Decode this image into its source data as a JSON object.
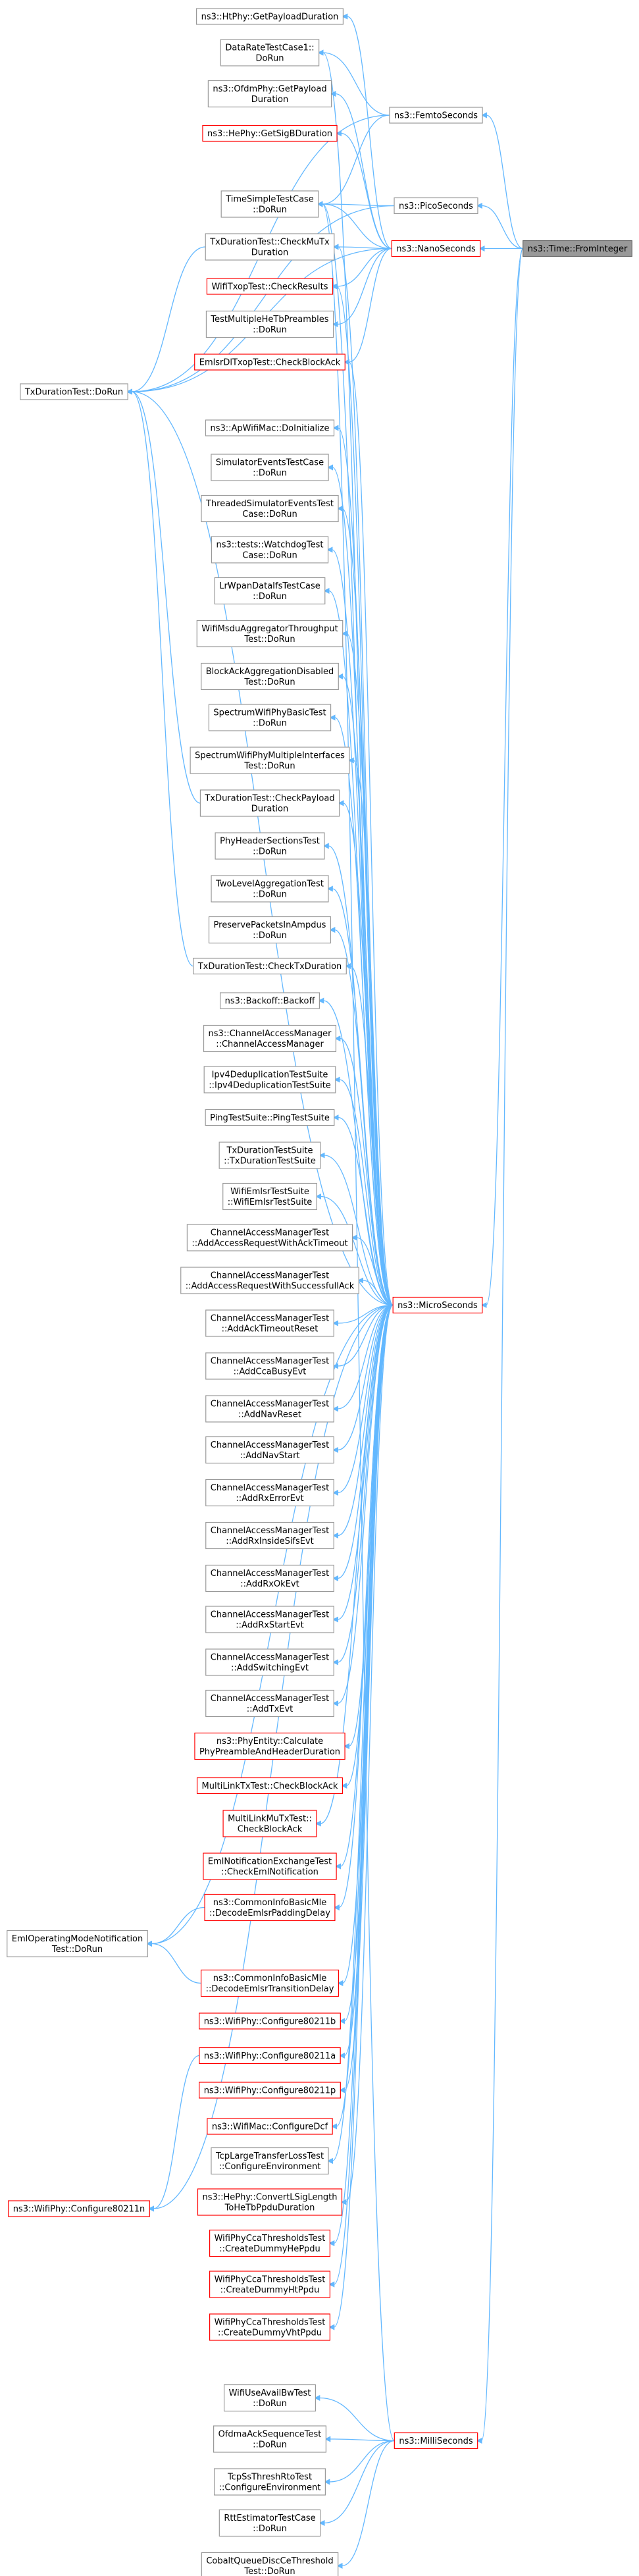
{
  "nodes": [
    {
      "lines": [
        "ns3::HtPhy::GetPayloadDuration"
      ]
    },
    {
      "lines": [
        "DataRateTestCase1::",
        "DoRun"
      ]
    },
    {
      "lines": [
        "ns3::OfdmPhy::GetPayload",
        "Duration"
      ]
    },
    {
      "lines": [
        "ns3::HePhy::GetSigBDuration"
      ]
    },
    {
      "lines": [
        "ns3::FemtoSeconds"
      ]
    },
    {
      "lines": [
        "TimeSimpleTestCase",
        "::DoRun"
      ]
    },
    {
      "lines": [
        "ns3::PicoSeconds"
      ]
    },
    {
      "lines": [
        "ns3::Time::FromInteger"
      ]
    },
    {
      "lines": [
        "TxDurationTest::CheckMuTx",
        "Duration"
      ]
    },
    {
      "lines": [
        "ns3::NanoSeconds"
      ]
    },
    {
      "lines": [
        "WifiTxopTest::CheckResults"
      ]
    },
    {
      "lines": [
        "TestMultipleHeTbPreambles",
        "::DoRun"
      ]
    },
    {
      "lines": [
        "EmlsrDlTxopTest::CheckBlockAck"
      ]
    },
    {
      "lines": [
        "TxDurationTest::DoRun"
      ]
    },
    {
      "lines": [
        "ns3::ApWifiMac::DoInitialize"
      ]
    },
    {
      "lines": [
        "SimulatorEventsTestCase",
        "::DoRun"
      ]
    },
    {
      "lines": [
        "ThreadedSimulatorEventsTest",
        "Case::DoRun"
      ]
    },
    {
      "lines": [
        "ns3::tests::WatchdogTest",
        "Case::DoRun"
      ]
    },
    {
      "lines": [
        "LrWpanDataIfsTestCase",
        "::DoRun"
      ]
    },
    {
      "lines": [
        "WifiMsduAggregatorThroughput",
        "Test::DoRun"
      ]
    },
    {
      "lines": [
        "BlockAckAggregationDisabled",
        "Test::DoRun"
      ]
    },
    {
      "lines": [
        "SpectrumWifiPhyBasicTest",
        "::DoRun"
      ]
    },
    {
      "lines": [
        "SpectrumWifiPhyMultipleInterfaces",
        "Test::DoRun"
      ]
    },
    {
      "lines": [
        "TxDurationTest::CheckPayload",
        "Duration"
      ]
    },
    {
      "lines": [
        "PhyHeaderSectionsTest",
        "::DoRun"
      ]
    },
    {
      "lines": [
        "TwoLevelAggregationTest",
        "::DoRun"
      ]
    },
    {
      "lines": [
        "PreservePacketsInAmpdus",
        "::DoRun"
      ]
    },
    {
      "lines": [
        "TxDurationTest::CheckTxDuration"
      ]
    },
    {
      "lines": [
        "ns3::Backoff::Backoff"
      ]
    },
    {
      "lines": [
        "ns3::ChannelAccessManager",
        "::ChannelAccessManager"
      ]
    },
    {
      "lines": [
        "Ipv4DeduplicationTestSuite",
        "::Ipv4DeduplicationTestSuite"
      ]
    },
    {
      "lines": [
        "PingTestSuite::PingTestSuite"
      ]
    },
    {
      "lines": [
        "TxDurationTestSuite",
        "::TxDurationTestSuite"
      ]
    },
    {
      "lines": [
        "WifiEmlsrTestSuite",
        "::WifiEmlsrTestSuite"
      ]
    },
    {
      "lines": [
        "ChannelAccessManagerTest",
        "::AddAccessRequestWithAckTimeout"
      ]
    },
    {
      "lines": [
        "ChannelAccessManagerTest",
        "::AddAccessRequestWithSuccessfullAck"
      ]
    },
    {
      "lines": [
        "ns3::MicroSeconds"
      ]
    },
    {
      "lines": [
        "ChannelAccessManagerTest",
        "::AddAckTimeoutReset"
      ]
    },
    {
      "lines": [
        "ChannelAccessManagerTest",
        "::AddCcaBusyEvt"
      ]
    },
    {
      "lines": [
        "ChannelAccessManagerTest",
        "::AddNavReset"
      ]
    },
    {
      "lines": [
        "ChannelAccessManagerTest",
        "::AddNavStart"
      ]
    },
    {
      "lines": [
        "ChannelAccessManagerTest",
        "::AddRxErrorEvt"
      ]
    },
    {
      "lines": [
        "ChannelAccessManagerTest",
        "::AddRxInsideSifsEvt"
      ]
    },
    {
      "lines": [
        "ChannelAccessManagerTest",
        "::AddRxOkEvt"
      ]
    },
    {
      "lines": [
        "ChannelAccessManagerTest",
        "::AddRxStartEvt"
      ]
    },
    {
      "lines": [
        "ChannelAccessManagerTest",
        "::AddSwitchingEvt"
      ]
    },
    {
      "lines": [
        "ChannelAccessManagerTest",
        "::AddTxEvt"
      ]
    },
    {
      "lines": [
        "ns3::PhyEntity::Calculate",
        "PhyPreambleAndHeaderDuration"
      ]
    },
    {
      "lines": [
        "MultiLinkTxTest::CheckBlockAck"
      ]
    },
    {
      "lines": [
        "MultiLinkMuTxTest::",
        "CheckBlockAck"
      ]
    },
    {
      "lines": [
        "EmlNotificationExchangeTest",
        "::CheckEmlNotification"
      ]
    },
    {
      "lines": [
        "ns3::CommonInfoBasicMle",
        "::DecodeEmlsrPaddingDelay"
      ]
    },
    {
      "lines": [
        "EmlOperatingModeNotification",
        "Test::DoRun"
      ]
    },
    {
      "lines": [
        "ns3::CommonInfoBasicMle",
        "::DecodeEmlsrTransitionDelay"
      ]
    },
    {
      "lines": [
        "ns3::WifiPhy::Configure80211b"
      ]
    },
    {
      "lines": [
        "ns3::WifiPhy::Configure80211a"
      ]
    },
    {
      "lines": [
        "ns3::WifiPhy::Configure80211p"
      ]
    },
    {
      "lines": [
        "ns3::WifiMac::ConfigureDcf"
      ]
    },
    {
      "lines": [
        "TcpLargeTransferLossTest",
        "::ConfigureEnvironment"
      ]
    },
    {
      "lines": [
        "ns3::HePhy::ConvertLSigLength",
        "ToHeTbPpduDuration"
      ]
    },
    {
      "lines": [
        "ns3::WifiPhy::Configure80211n"
      ]
    },
    {
      "lines": [
        "WifiPhyCcaThresholdsTest",
        "::CreateDummyHePpdu"
      ]
    },
    {
      "lines": [
        "WifiPhyCcaThresholdsTest",
        "::CreateDummyHtPpdu"
      ]
    },
    {
      "lines": [
        "WifiPhyCcaThresholdsTest",
        "::CreateDummyVhtPpdu"
      ]
    },
    {
      "lines": [
        "WifiUseAvailBwTest",
        "::DoRun"
      ]
    },
    {
      "lines": [
        "OfdmaAckSequenceTest",
        "::DoRun"
      ]
    },
    {
      "lines": [
        "ns3::MilliSeconds"
      ]
    },
    {
      "lines": [
        "TcpSsThreshRtoTest",
        "::ConfigureEnvironment"
      ]
    },
    {
      "lines": [
        "RttEstimatorTestCase",
        "::DoRun"
      ]
    },
    {
      "lines": [
        "CobaltQueueDiscCeThreshold",
        "Test::DoRun"
      ]
    }
  ]
}
